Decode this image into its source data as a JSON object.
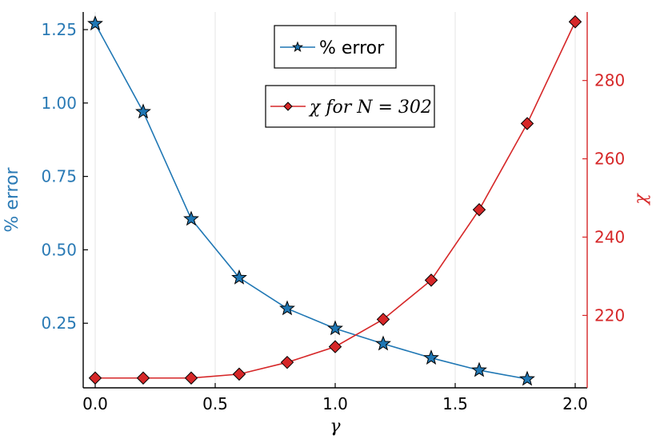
{
  "chart_data": {
    "type": "line",
    "x_axis": {
      "label": "γ",
      "range": [
        -0.05,
        2.05
      ],
      "ticks": [
        0.0,
        0.5,
        1.0,
        1.5,
        2.0
      ],
      "tick_labels": [
        "0.0",
        "0.5",
        "1.0",
        "1.5",
        "2.0"
      ]
    },
    "y_axis_left": {
      "label": "% error",
      "color": "#2a7ab5",
      "range": [
        0.03,
        1.31
      ],
      "ticks": [
        0.25,
        0.5,
        0.75,
        1.0,
        1.25
      ],
      "tick_labels": [
        "0.25",
        "0.50",
        "0.75",
        "1.00",
        "1.25"
      ]
    },
    "y_axis_right": {
      "label": "χ",
      "color": "#d62728",
      "range": [
        201.5,
        297.5
      ],
      "ticks": [
        220,
        240,
        260,
        280
      ],
      "tick_labels": [
        "220",
        "240",
        "260",
        "280"
      ]
    },
    "grid": "vertical",
    "series": [
      {
        "name": "% error",
        "axis": "left",
        "color": "#1f77b4",
        "marker": "star",
        "x": [
          0.0,
          0.2,
          0.4,
          0.6,
          0.8,
          1.0,
          1.2,
          1.4,
          1.6,
          1.8
        ],
        "y": [
          1.27,
          0.97,
          0.605,
          0.405,
          0.3,
          0.232,
          0.18,
          0.132,
          0.09,
          0.06
        ]
      },
      {
        "name": "χ for N = 302",
        "axis": "right",
        "color": "#d62728",
        "marker": "diamond",
        "x": [
          0.0,
          0.2,
          0.4,
          0.6,
          0.8,
          1.0,
          1.2,
          1.4,
          1.6,
          1.8,
          2.0
        ],
        "y": [
          204,
          204,
          204,
          205,
          208,
          212,
          219,
          229,
          247,
          269,
          295
        ]
      }
    ],
    "legends": [
      {
        "entries": [
          "% error"
        ],
        "placement": "top-center"
      },
      {
        "entries": [
          "χ for N = 302"
        ],
        "placement": "upper-center"
      }
    ]
  }
}
